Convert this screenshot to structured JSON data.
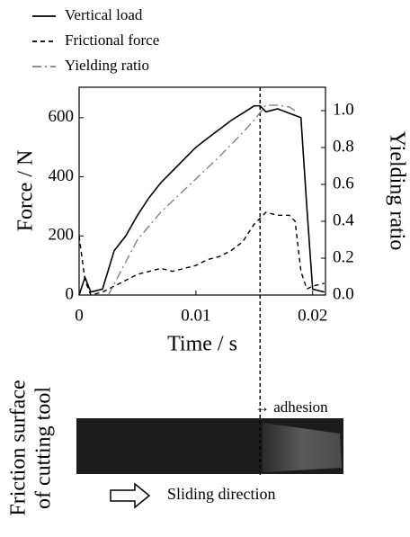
{
  "chart_data": {
    "type": "line",
    "xlabel": "Time / s",
    "ylabel": "Force / N",
    "y2label": "Yielding ratio",
    "xlim": [
      0,
      0.0211
    ],
    "ylim": [
      0,
      703
    ],
    "y2lim": [
      0,
      1.127
    ],
    "xticks": [
      0,
      0.01,
      0.02
    ],
    "yticks": [
      0,
      200,
      400,
      600
    ],
    "y2ticks": [
      {
        "value": 0,
        "label": "0.0"
      },
      0.2,
      0.4,
      0.6,
      0.8,
      {
        "value": 1,
        "label": "1.0"
      }
    ],
    "vlines": [
      0.0155
    ],
    "series": [
      {
        "name": "Vertical load",
        "color": "#000000",
        "dash": "solid",
        "x": [
          0,
          0.0005,
          0.001,
          0.002,
          0.003,
          0.004,
          0.005,
          0.006,
          0.007,
          0.008,
          0.009,
          0.01,
          0.011,
          0.012,
          0.013,
          0.014,
          0.015,
          0.0155,
          0.016,
          0.017,
          0.018,
          0.019,
          0.0195,
          0.02,
          0.021
        ],
        "values": [
          0,
          60,
          10,
          20,
          150,
          200,
          270,
          330,
          380,
          420,
          460,
          500,
          530,
          560,
          590,
          615,
          640,
          640,
          620,
          630,
          615,
          600,
          300,
          20,
          10
        ]
      },
      {
        "name": "Frictional force",
        "color": "#000000",
        "dash": "dashed",
        "x": [
          0,
          0.0005,
          0.001,
          0.002,
          0.003,
          0.004,
          0.005,
          0.006,
          0.007,
          0.008,
          0.009,
          0.01,
          0.011,
          0.012,
          0.013,
          0.014,
          0.015,
          0.016,
          0.017,
          0.018,
          0.0185,
          0.019,
          0.0195,
          0.02,
          0.021
        ],
        "values": [
          200,
          50,
          0,
          10,
          30,
          50,
          70,
          80,
          90,
          80,
          90,
          100,
          120,
          130,
          150,
          180,
          240,
          280,
          270,
          270,
          250,
          80,
          20,
          30,
          40
        ]
      },
      {
        "name": "Yielding ratio",
        "color": "#808080",
        "dash": "dashdot",
        "axis": "y2",
        "x": [
          0.0025,
          0.005,
          0.007,
          0.01,
          0.012,
          0.014,
          0.015,
          0.016,
          0.017,
          0.018,
          0.0185
        ],
        "values": [
          0,
          0.3,
          0.45,
          0.63,
          0.75,
          0.88,
          0.95,
          1.03,
          1.03,
          1.02,
          1.0
        ]
      }
    ],
    "annotations": [
      "→ adhesion",
      "Sliding direction",
      "Friction surface",
      "of cutting tool"
    ]
  }
}
